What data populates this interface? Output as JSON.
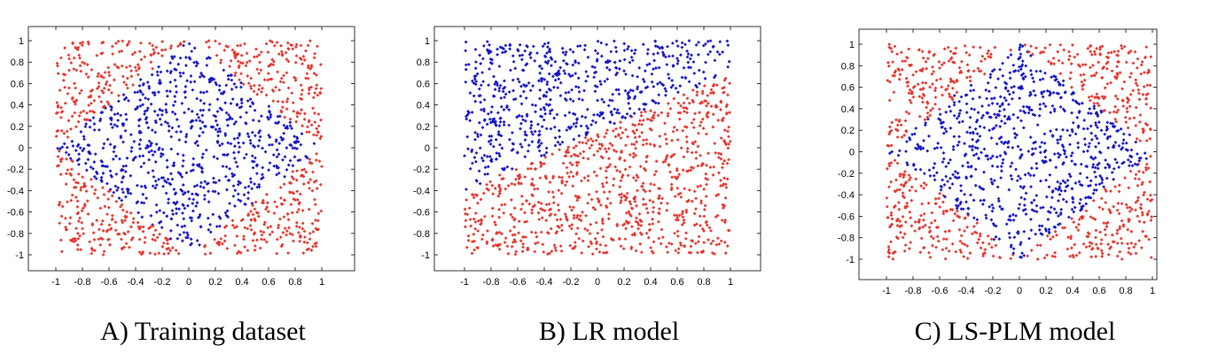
{
  "colors": {
    "red": "#e8332b",
    "blue": "#1414c8"
  },
  "chart_data": [
    {
      "type": "scatter",
      "caption": "A) Training dataset",
      "xlim": [
        -1,
        1
      ],
      "ylim": [
        -1,
        1
      ],
      "xticks": [
        "-1",
        "-0.8",
        "-0.6",
        "-0.4",
        "-0.2",
        "0",
        "0.2",
        "0.4",
        "0.6",
        "0.8",
        "1"
      ],
      "yticks": [
        "1",
        "0.8",
        "0.6",
        "0.4",
        "0.2",
        "0",
        "-0.2",
        "-0.4",
        "-0.6",
        "-0.8",
        "-1"
      ],
      "grid": false,
      "series": [
        {
          "color": "red",
          "region": "outside diamond |x|+|y|>1"
        },
        {
          "color": "blue",
          "region": "inside diamond |x|+|y|<1"
        }
      ]
    },
    {
      "type": "scatter",
      "caption": "B) LR model",
      "xlim": [
        -1,
        1
      ],
      "ylim": [
        -1,
        1
      ],
      "xticks": [
        "-1",
        "-0.8",
        "-0.6",
        "-0.4",
        "-0.2",
        "0",
        "0.2",
        "0.4",
        "0.6",
        "0.8",
        "1"
      ],
      "yticks": [
        "1",
        "0.8",
        "0.6",
        "0.4",
        "0.2",
        "0",
        "-0.2",
        "-0.4",
        "-0.6",
        "-0.8",
        "-1"
      ],
      "grid": false,
      "series": [
        {
          "color": "blue",
          "region": "above line y = 0.55x + 0.15"
        },
        {
          "color": "red",
          "region": "below line y = 0.55x + 0.15"
        }
      ]
    },
    {
      "type": "scatter",
      "caption": "C) LS-PLM model",
      "xlim": [
        -1,
        1
      ],
      "ylim": [
        -1,
        1
      ],
      "xticks": [
        "-1",
        "-0.8",
        "-0.6",
        "-0.4",
        "-0.2",
        "0",
        "0.2",
        "0.4",
        "0.6",
        "0.8",
        "1"
      ],
      "yticks": [
        "1",
        "0.8",
        "0.6",
        "0.4",
        "0.2",
        "0",
        "-0.2",
        "-0.4",
        "-0.6",
        "-0.8",
        "-1"
      ],
      "grid": false,
      "series": [
        {
          "color": "red",
          "region": "outside diamond |x|+|y|>1"
        },
        {
          "color": "blue",
          "region": "inside diamond |x|+|y|<1"
        }
      ]
    }
  ]
}
